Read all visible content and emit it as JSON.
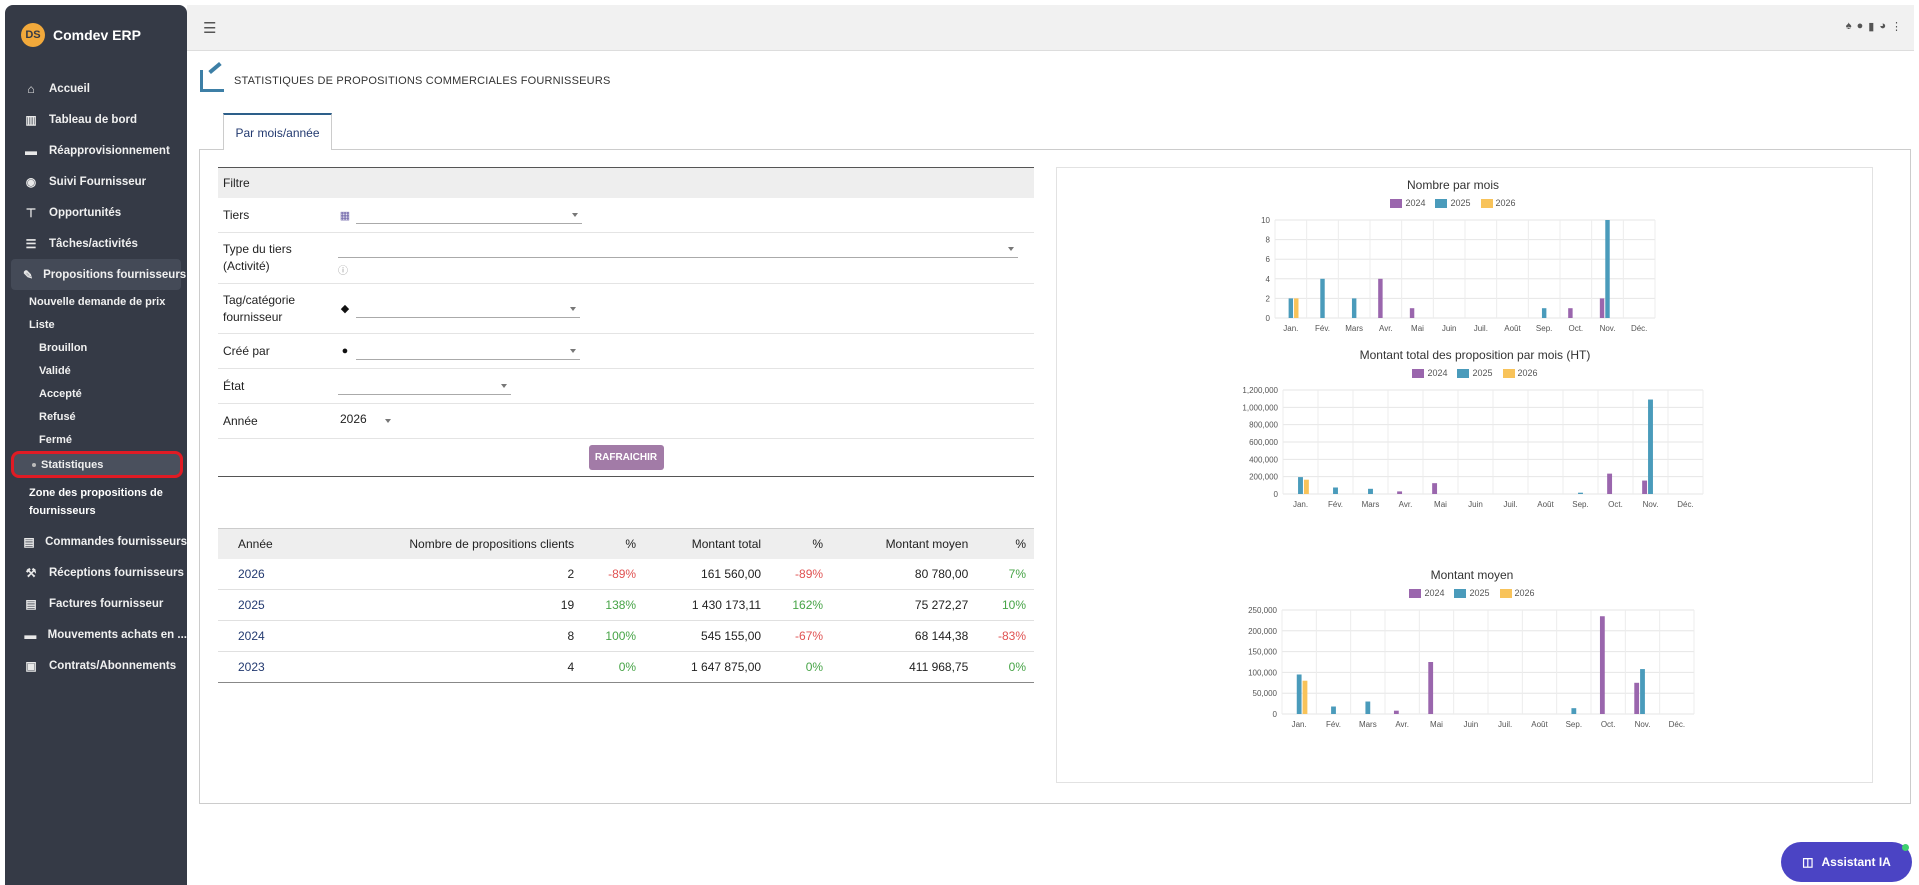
{
  "app": {
    "name": "Comdev ERP",
    "logo": "DS"
  },
  "sidebar": {
    "items": [
      {
        "label": "Accueil",
        "icon": "home-icon",
        "glyph": "⌂"
      },
      {
        "label": "Tableau de bord",
        "icon": "chart-icon",
        "glyph": "▥"
      },
      {
        "label": "Réapprovisionnement",
        "icon": "truck-icon",
        "glyph": "▬"
      },
      {
        "label": "Suivi Fournisseur",
        "icon": "users-icon",
        "glyph": "◉"
      },
      {
        "label": "Opportunités",
        "icon": "sitemap-icon",
        "glyph": "⊤"
      },
      {
        "label": "Tâches/activités",
        "icon": "tasks-icon",
        "glyph": "☰"
      },
      {
        "label": "Propositions fournisseurs",
        "icon": "edit-icon",
        "glyph": "✎"
      }
    ],
    "sub": {
      "nouvelle": "Nouvelle demande de prix",
      "liste": "Liste",
      "brouillon": "Brouillon",
      "valide": "Validé",
      "accepte": "Accepté",
      "refuse": "Refusé",
      "ferme": "Fermé",
      "statistiques": "Statistiques",
      "zone": "Zone des propositions de fournisseurs"
    },
    "items_after": [
      {
        "label": "Commandes fournisseurs",
        "icon": "file-icon",
        "glyph": "▤"
      },
      {
        "label": "Réceptions fournisseurs",
        "icon": "dolly-icon",
        "glyph": "⚒"
      },
      {
        "label": "Factures fournisseur",
        "icon": "invoice-icon",
        "glyph": "▤"
      },
      {
        "label": "Mouvements achats en ...",
        "icon": "truck-icon",
        "glyph": "▬"
      },
      {
        "label": "Contrats/Abonnements",
        "icon": "briefcase-icon",
        "glyph": "▣"
      }
    ]
  },
  "page": {
    "title": "STATISTIQUES DE PROPOSITIONS COMMERCIALES FOURNISSEURS",
    "tab": "Par mois/année"
  },
  "filter": {
    "header": "Filtre",
    "tiers": "Tiers",
    "type_tiers": "Type du tiers (Activité)",
    "tag": "Tag/catégorie fournisseur",
    "cree_par": "Créé par",
    "etat": "État",
    "annee": "Année",
    "annee_value": "2026",
    "refresh": "RAFRAICHIR"
  },
  "table": {
    "headers": [
      "Année",
      "Nombre de propositions clients",
      "%",
      "Montant total",
      "%",
      "Montant moyen",
      "%"
    ],
    "rows": [
      {
        "annee": "2026",
        "nb": "2",
        "p1": "-89%",
        "total": "161 560,00",
        "p2": "-89%",
        "moyen": "80 780,00",
        "p3": "7%"
      },
      {
        "annee": "2025",
        "nb": "19",
        "p1": "138%",
        "total": "1 430 173,11",
        "p2": "162%",
        "moyen": "75 272,27",
        "p3": "10%"
      },
      {
        "annee": "2024",
        "nb": "8",
        "p1": "100%",
        "total": "545 155,00",
        "p2": "-67%",
        "moyen": "68 144,38",
        "p3": "-83%"
      },
      {
        "annee": "2023",
        "nb": "4",
        "p1": "0%",
        "total": "1 647 875,00",
        "p2": "0%",
        "moyen": "411 968,75",
        "p3": "0%"
      }
    ]
  },
  "colors": {
    "s2024": "#9a66ad",
    "s2025": "#4a9bbb",
    "s2026": "#f8c35a",
    "neg": "#e05252",
    "pos": "#47a447"
  },
  "chart_data": [
    {
      "type": "bar",
      "title": "Nombre par mois",
      "categories": [
        "Jan.",
        "Fév.",
        "Mars",
        "Avr.",
        "Mai",
        "Juin",
        "Juil.",
        "Août",
        "Sep.",
        "Oct.",
        "Nov.",
        "Déc."
      ],
      "series": [
        {
          "name": "2024",
          "values": [
            0,
            0,
            0,
            4,
            1,
            0,
            0,
            0,
            0,
            1,
            2,
            0
          ]
        },
        {
          "name": "2025",
          "values": [
            2,
            4,
            2,
            0,
            0,
            0,
            0,
            0,
            1,
            0,
            10,
            0
          ]
        },
        {
          "name": "2026",
          "values": [
            2,
            0,
            0,
            0,
            0,
            0,
            0,
            0,
            0,
            0,
            0,
            0
          ]
        }
      ],
      "ylim": [
        0,
        10
      ],
      "yticks": [
        0,
        2,
        4,
        6,
        8,
        10
      ],
      "ytick_labels": [
        "0",
        "2",
        "4",
        "6",
        "8",
        "10"
      ],
      "grid": true,
      "legend": "top"
    },
    {
      "type": "bar",
      "title": "Montant total des proposition par mois (HT)",
      "categories": [
        "Jan.",
        "Fév.",
        "Mars",
        "Avr.",
        "Mai",
        "Juin",
        "Juil.",
        "Août",
        "Sep.",
        "Oct.",
        "Nov.",
        "Déc."
      ],
      "series": [
        {
          "name": "2024",
          "values": [
            0,
            0,
            0,
            30000,
            125000,
            0,
            0,
            0,
            0,
            235000,
            155000,
            0
          ]
        },
        {
          "name": "2025",
          "values": [
            195000,
            75000,
            60000,
            0,
            0,
            0,
            0,
            0,
            15000,
            0,
            1090000,
            0
          ]
        },
        {
          "name": "2026",
          "values": [
            165000,
            0,
            0,
            0,
            0,
            0,
            0,
            0,
            0,
            0,
            0,
            0
          ]
        }
      ],
      "ylim": [
        0,
        1200000
      ],
      "yticks": [
        0,
        200000,
        400000,
        600000,
        800000,
        1000000,
        1200000
      ],
      "ytick_labels": [
        "0",
        "200,000",
        "400,000",
        "600,000",
        "800,000",
        "1,000,000",
        "1,200,000"
      ],
      "grid": true,
      "legend": "top"
    },
    {
      "type": "bar",
      "title": "Montant moyen",
      "categories": [
        "Jan.",
        "Fév.",
        "Mars",
        "Avr.",
        "Mai",
        "Juin",
        "Juil.",
        "Août",
        "Sep.",
        "Oct.",
        "Nov.",
        "Déc."
      ],
      "series": [
        {
          "name": "2024",
          "values": [
            0,
            0,
            0,
            8000,
            125000,
            0,
            0,
            0,
            0,
            235000,
            75000,
            0
          ]
        },
        {
          "name": "2025",
          "values": [
            95000,
            18000,
            30000,
            0,
            0,
            0,
            0,
            0,
            14000,
            0,
            108000,
            0
          ]
        },
        {
          "name": "2026",
          "values": [
            80000,
            0,
            0,
            0,
            0,
            0,
            0,
            0,
            0,
            0,
            0,
            0
          ]
        }
      ],
      "ylim": [
        0,
        250000
      ],
      "yticks": [
        0,
        50000,
        100000,
        150000,
        200000,
        250000
      ],
      "ytick_labels": [
        "0",
        "50,000",
        "100,000",
        "150,000",
        "200,000",
        "250,000"
      ],
      "grid": true,
      "legend": "top"
    }
  ],
  "assistant": {
    "label": "Assistant IA"
  }
}
